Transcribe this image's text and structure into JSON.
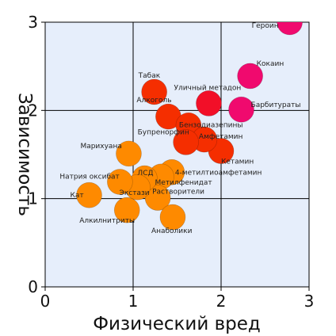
{
  "chart_data": {
    "type": "scatter",
    "title": "",
    "xlabel": "Физический вред",
    "ylabel": "Зависимость",
    "xlim": [
      0,
      3
    ],
    "ylim": [
      0,
      3
    ],
    "x_ticks": [
      "0",
      "1",
      "2",
      "3"
    ],
    "y_ticks": [
      "0",
      "1",
      "2",
      "3"
    ],
    "grid": true,
    "colors": {
      "plot_background": "#e6eefb",
      "grid": "#000000",
      "orange": "#fe8a00",
      "red": "#f52e00",
      "crimson": "#f20f28",
      "pink": "#f00a6e"
    },
    "points": [
      {
        "label": "Героин",
        "x": 2.78,
        "y": 3.0,
        "color": "#f00a6e"
      },
      {
        "label": "Кокаин",
        "x": 2.33,
        "y": 2.39,
        "color": "#f00a6e"
      },
      {
        "label": "Барбитураты",
        "x": 2.23,
        "y": 2.01,
        "color": "#f00a6e"
      },
      {
        "label": "Уличный метадон",
        "x": 1.86,
        "y": 2.08,
        "color": "#f20f28"
      },
      {
        "label": "Алкоголь",
        "x": 1.4,
        "y": 1.93,
        "color": "#f52e00"
      },
      {
        "label": "Кетамин",
        "x": 2.0,
        "y": 1.54,
        "color": "#f52e00"
      },
      {
        "label": "Бензодиазепины",
        "x": 1.63,
        "y": 1.83,
        "color": "#f52e00"
      },
      {
        "label": "Амфетамин",
        "x": 1.81,
        "y": 1.67,
        "color": "#f52e00"
      },
      {
        "label": "Табак",
        "x": 1.24,
        "y": 2.21,
        "color": "#f52e00"
      },
      {
        "label": "Бупренорфин",
        "x": 1.6,
        "y": 1.64,
        "color": "#f52e00"
      },
      {
        "label": "4-метилтиоамфетамин",
        "x": 1.44,
        "y": 1.3,
        "color": "#fe8a00"
      },
      {
        "label": "Метилфенидат",
        "x": 1.32,
        "y": 1.25,
        "color": "#fe8a00"
      },
      {
        "label": "Растворители",
        "x": 1.28,
        "y": 1.01,
        "color": "#fe8a00"
      },
      {
        "label": "Анаболики",
        "x": 1.45,
        "y": 0.79,
        "color": "#fe8a00"
      },
      {
        "label": "ЛСД",
        "x": 1.13,
        "y": 1.23,
        "color": "#fe8a00"
      },
      {
        "label": "Экстази",
        "x": 1.05,
        "y": 1.13,
        "color": "#fe8a00"
      },
      {
        "label": "Марихуана",
        "x": 0.95,
        "y": 1.51,
        "color": "#fe8a00"
      },
      {
        "label": "Натрия оксибат",
        "x": 0.85,
        "y": 1.19,
        "color": "#fe8a00"
      },
      {
        "label": "Алкилнитриты",
        "x": 0.93,
        "y": 0.87,
        "color": "#fe8a00"
      },
      {
        "label": "Кат",
        "x": 0.5,
        "y": 1.04,
        "color": "#fe8a00"
      }
    ]
  }
}
